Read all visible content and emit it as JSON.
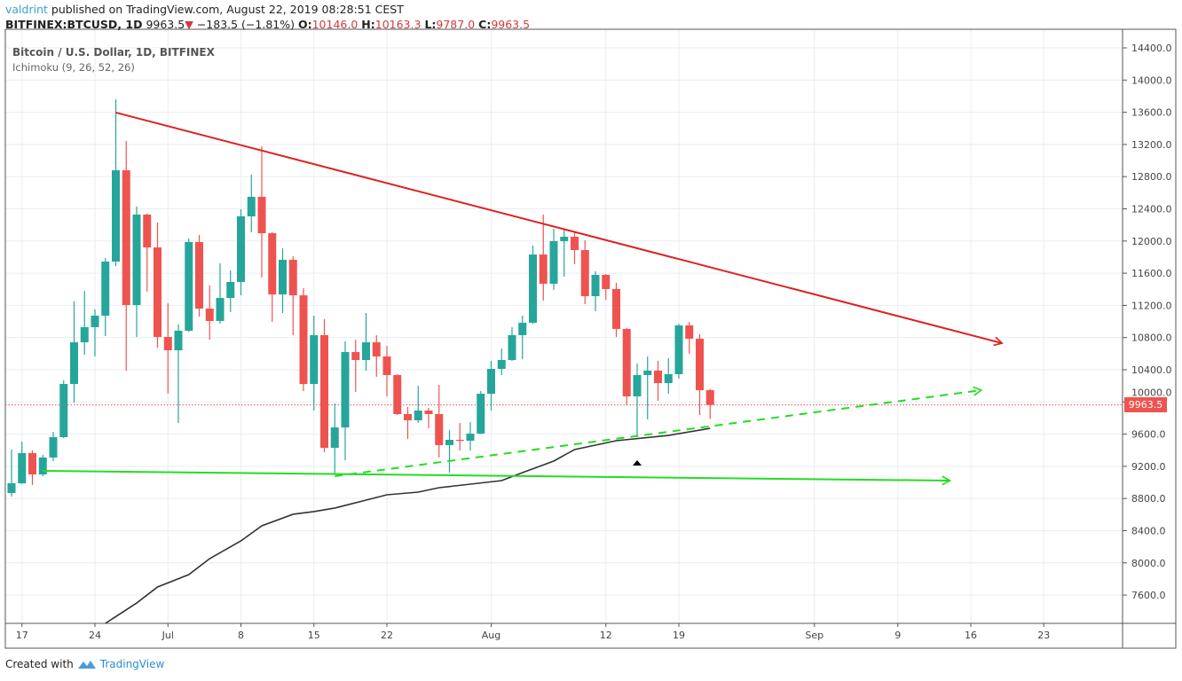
{
  "header": {
    "author": "valdrint",
    "published": " published on TradingView.com, August 22, 2019 08:28:51 CEST",
    "symbol": "BITFINEX:BTCUSD, 1D",
    "last": "9963.5",
    "change": "−183.5 (−1.81%)",
    "o_label": "O:",
    "o": "10146.0",
    "h_label": "H:",
    "h": "10163.3",
    "l_label": "L:",
    "l": "9787.0",
    "c_label": "C:",
    "c": "9963.5"
  },
  "legend": {
    "title": "Bitcoin / U.S. Dollar, 1D, BITFINEX",
    "indicator": "Ichimoku (9, 26, 52, 26)"
  },
  "footer": {
    "created_with": "Created with",
    "brand": "TradingView"
  },
  "colors": {
    "up": "#26a69a",
    "down": "#ef5350",
    "resistance": "#e02020",
    "support": "#22dd22",
    "ichimoku": "#333333",
    "grid": "#e8eef3"
  },
  "chart_data": {
    "type": "candlestick",
    "ylim": [
      7200,
      14500
    ],
    "y_ticks": [
      "14400.0",
      "14000.0",
      "13600.0",
      "13200.0",
      "12800.0",
      "12400.0",
      "12000.0",
      "11600.0",
      "11200.0",
      "10800.0",
      "10400.0",
      "10000.0",
      "9600.0",
      "9200.0",
      "8800.0",
      "8400.0",
      "8000.0",
      "7600.0"
    ],
    "x_range": [
      "2019-06-15",
      "2019-09-30"
    ],
    "x_ticks": [
      {
        "date": "2019-06-17",
        "label": "17"
      },
      {
        "date": "2019-06-24",
        "label": "24"
      },
      {
        "date": "2019-07-01",
        "label": "Jul"
      },
      {
        "date": "2019-07-08",
        "label": "8"
      },
      {
        "date": "2019-07-15",
        "label": "15"
      },
      {
        "date": "2019-07-22",
        "label": "22"
      },
      {
        "date": "2019-08-01",
        "label": "Aug"
      },
      {
        "date": "2019-08-12",
        "label": "12"
      },
      {
        "date": "2019-08-19",
        "label": "19"
      },
      {
        "date": "2019-09-01",
        "label": "Sep"
      },
      {
        "date": "2019-09-09",
        "label": "9"
      },
      {
        "date": "2019-09-16",
        "label": "16"
      },
      {
        "date": "2019-09-23",
        "label": "23"
      }
    ],
    "grid": true,
    "last_price": "9963.5",
    "candles": [
      [
        "2019-06-16",
        8868,
        9408,
        8824,
        8989
      ],
      [
        "2019-06-17",
        8989,
        9507,
        8980,
        9364
      ],
      [
        "2019-06-18",
        9364,
        9397,
        8967,
        9099
      ],
      [
        "2019-06-19",
        9099,
        9342,
        9077,
        9309
      ],
      [
        "2019-06-20",
        9309,
        9628,
        9265,
        9562
      ],
      [
        "2019-06-21",
        9562,
        10267,
        9550,
        10223
      ],
      [
        "2019-06-22",
        10223,
        11248,
        9991,
        10741
      ],
      [
        "2019-06-23",
        10741,
        11380,
        10587,
        10929
      ],
      [
        "2019-06-24",
        10929,
        11149,
        10565,
        11072
      ],
      [
        "2019-06-25",
        11072,
        11788,
        10819,
        11744
      ],
      [
        "2019-06-26",
        11744,
        13761,
        11689,
        12879
      ],
      [
        "2019-06-27",
        12879,
        13243,
        10389,
        11204
      ],
      [
        "2019-06-28",
        11204,
        12427,
        10807,
        12328
      ],
      [
        "2019-06-29",
        12328,
        12340,
        11370,
        11920
      ],
      [
        "2019-06-30",
        11920,
        12229,
        10675,
        10807
      ],
      [
        "2019-07-01",
        10807,
        11226,
        10102,
        10642
      ],
      [
        "2019-07-02",
        10642,
        10962,
        9739,
        10885
      ],
      [
        "2019-07-03",
        10885,
        12031,
        10870,
        11987
      ],
      [
        "2019-07-04",
        11987,
        12075,
        11061,
        11160
      ],
      [
        "2019-07-05",
        11160,
        11447,
        10774,
        11006
      ],
      [
        "2019-07-06",
        11006,
        11722,
        10973,
        11292
      ],
      [
        "2019-07-07",
        11292,
        11634,
        11116,
        11491
      ],
      [
        "2019-07-08",
        11491,
        12394,
        11325,
        12306
      ],
      [
        "2019-07-09",
        12306,
        12824,
        12108,
        12549
      ],
      [
        "2019-07-10",
        12549,
        13177,
        11546,
        12097
      ],
      [
        "2019-07-11",
        12097,
        12110,
        10995,
        11336
      ],
      [
        "2019-07-12",
        11336,
        11910,
        11105,
        11766
      ],
      [
        "2019-07-13",
        11766,
        11810,
        10830,
        11325
      ],
      [
        "2019-07-14",
        11325,
        11414,
        10135,
        10223
      ],
      [
        "2019-07-15",
        10223,
        11072,
        9893,
        10830
      ],
      [
        "2019-07-16",
        10830,
        11028,
        9375,
        9430
      ],
      [
        "2019-07-17",
        9430,
        9981,
        9099,
        9683
      ],
      [
        "2019-07-18",
        9683,
        10752,
        9276,
        10620
      ],
      [
        "2019-07-19",
        10620,
        10774,
        10124,
        10521
      ],
      [
        "2019-07-20",
        10521,
        11105,
        10389,
        10741
      ],
      [
        "2019-07-21",
        10741,
        10830,
        10312,
        10565
      ],
      [
        "2019-07-22",
        10565,
        10697,
        10069,
        10334
      ],
      [
        "2019-07-23",
        10334,
        10345,
        9838,
        9849
      ],
      [
        "2019-07-24",
        9849,
        9937,
        9540,
        9772
      ],
      [
        "2019-07-25",
        9772,
        10201,
        9739,
        9893
      ],
      [
        "2019-07-26",
        9893,
        9926,
        9673,
        9849
      ],
      [
        "2019-07-27",
        9849,
        10212,
        9309,
        9463
      ],
      [
        "2019-07-28",
        9463,
        9650,
        9121,
        9529
      ],
      [
        "2019-07-29",
        9529,
        9739,
        9397,
        9518
      ],
      [
        "2019-07-30",
        9518,
        9750,
        9397,
        9606
      ],
      [
        "2019-07-31",
        9606,
        10135,
        9600,
        10102
      ],
      [
        "2019-08-01",
        10102,
        10510,
        9893,
        10411
      ],
      [
        "2019-08-02",
        10411,
        10664,
        10334,
        10521
      ],
      [
        "2019-08-03",
        10521,
        10929,
        10510,
        10830
      ],
      [
        "2019-08-04",
        10830,
        11072,
        10532,
        10984
      ],
      [
        "2019-08-05",
        10984,
        11943,
        10970,
        11832
      ],
      [
        "2019-08-06",
        11832,
        12328,
        11259,
        11469
      ],
      [
        "2019-08-07",
        11469,
        12152,
        11392,
        11998
      ],
      [
        "2019-08-08",
        11998,
        12141,
        11557,
        12053
      ],
      [
        "2019-08-09",
        12053,
        12108,
        11711,
        11887
      ],
      [
        "2019-08-10",
        11887,
        12009,
        11215,
        11314
      ],
      [
        "2019-08-11",
        11314,
        11623,
        11127,
        11579
      ],
      [
        "2019-08-12",
        11579,
        11590,
        11270,
        11403
      ],
      [
        "2019-08-13",
        11403,
        11480,
        10807,
        10907
      ],
      [
        "2019-08-14",
        10907,
        10920,
        9959,
        10069
      ],
      [
        "2019-08-15",
        10069,
        10477,
        9562,
        10334
      ],
      [
        "2019-08-16",
        10334,
        10565,
        9783,
        10389
      ],
      [
        "2019-08-17",
        10389,
        10510,
        10014,
        10234
      ],
      [
        "2019-08-18",
        10234,
        10543,
        10102,
        10345
      ],
      [
        "2019-08-19",
        10345,
        10973,
        10290,
        10951
      ],
      [
        "2019-08-20",
        10951,
        10995,
        10598,
        10786
      ],
      [
        "2019-08-21",
        10786,
        10841,
        9838,
        10146
      ],
      [
        "2019-08-22",
        10146,
        10163.3,
        9787,
        9963.5
      ]
    ],
    "ichimoku_line": [
      [
        "2019-06-25",
        7248
      ],
      [
        "2019-06-28",
        7501
      ],
      [
        "2019-06-30",
        7700
      ],
      [
        "2019-07-03",
        7854
      ],
      [
        "2019-07-05",
        8052
      ],
      [
        "2019-07-08",
        8273
      ],
      [
        "2019-07-10",
        8460
      ],
      [
        "2019-07-13",
        8604
      ],
      [
        "2019-07-15",
        8637
      ],
      [
        "2019-07-17",
        8681
      ],
      [
        "2019-07-20",
        8780
      ],
      [
        "2019-07-22",
        8846
      ],
      [
        "2019-07-25",
        8879
      ],
      [
        "2019-07-27",
        8934
      ],
      [
        "2019-08-02",
        9022
      ],
      [
        "2019-08-04",
        9121
      ],
      [
        "2019-08-07",
        9265
      ],
      [
        "2019-08-09",
        9408
      ],
      [
        "2019-08-13",
        9518
      ],
      [
        "2019-08-18",
        9584
      ],
      [
        "2019-08-22",
        9672
      ]
    ],
    "trendlines": [
      {
        "kind": "resistance",
        "style": "solid",
        "arrow": true,
        "from": [
          "2019-06-26",
          13596
        ],
        "to": [
          "2019-09-19",
          10730
        ]
      },
      {
        "kind": "support",
        "style": "solid",
        "arrow": true,
        "from": [
          "2019-06-19",
          9143
        ],
        "to": [
          "2019-09-14",
          9022
        ]
      },
      {
        "kind": "support",
        "style": "dashed",
        "arrow": true,
        "from": [
          "2019-07-17",
          9077
        ],
        "to": [
          "2019-09-17",
          10146
        ]
      }
    ],
    "marker": {
      "shape": "triangle-up",
      "date": "2019-08-15",
      "price": 9243
    }
  }
}
